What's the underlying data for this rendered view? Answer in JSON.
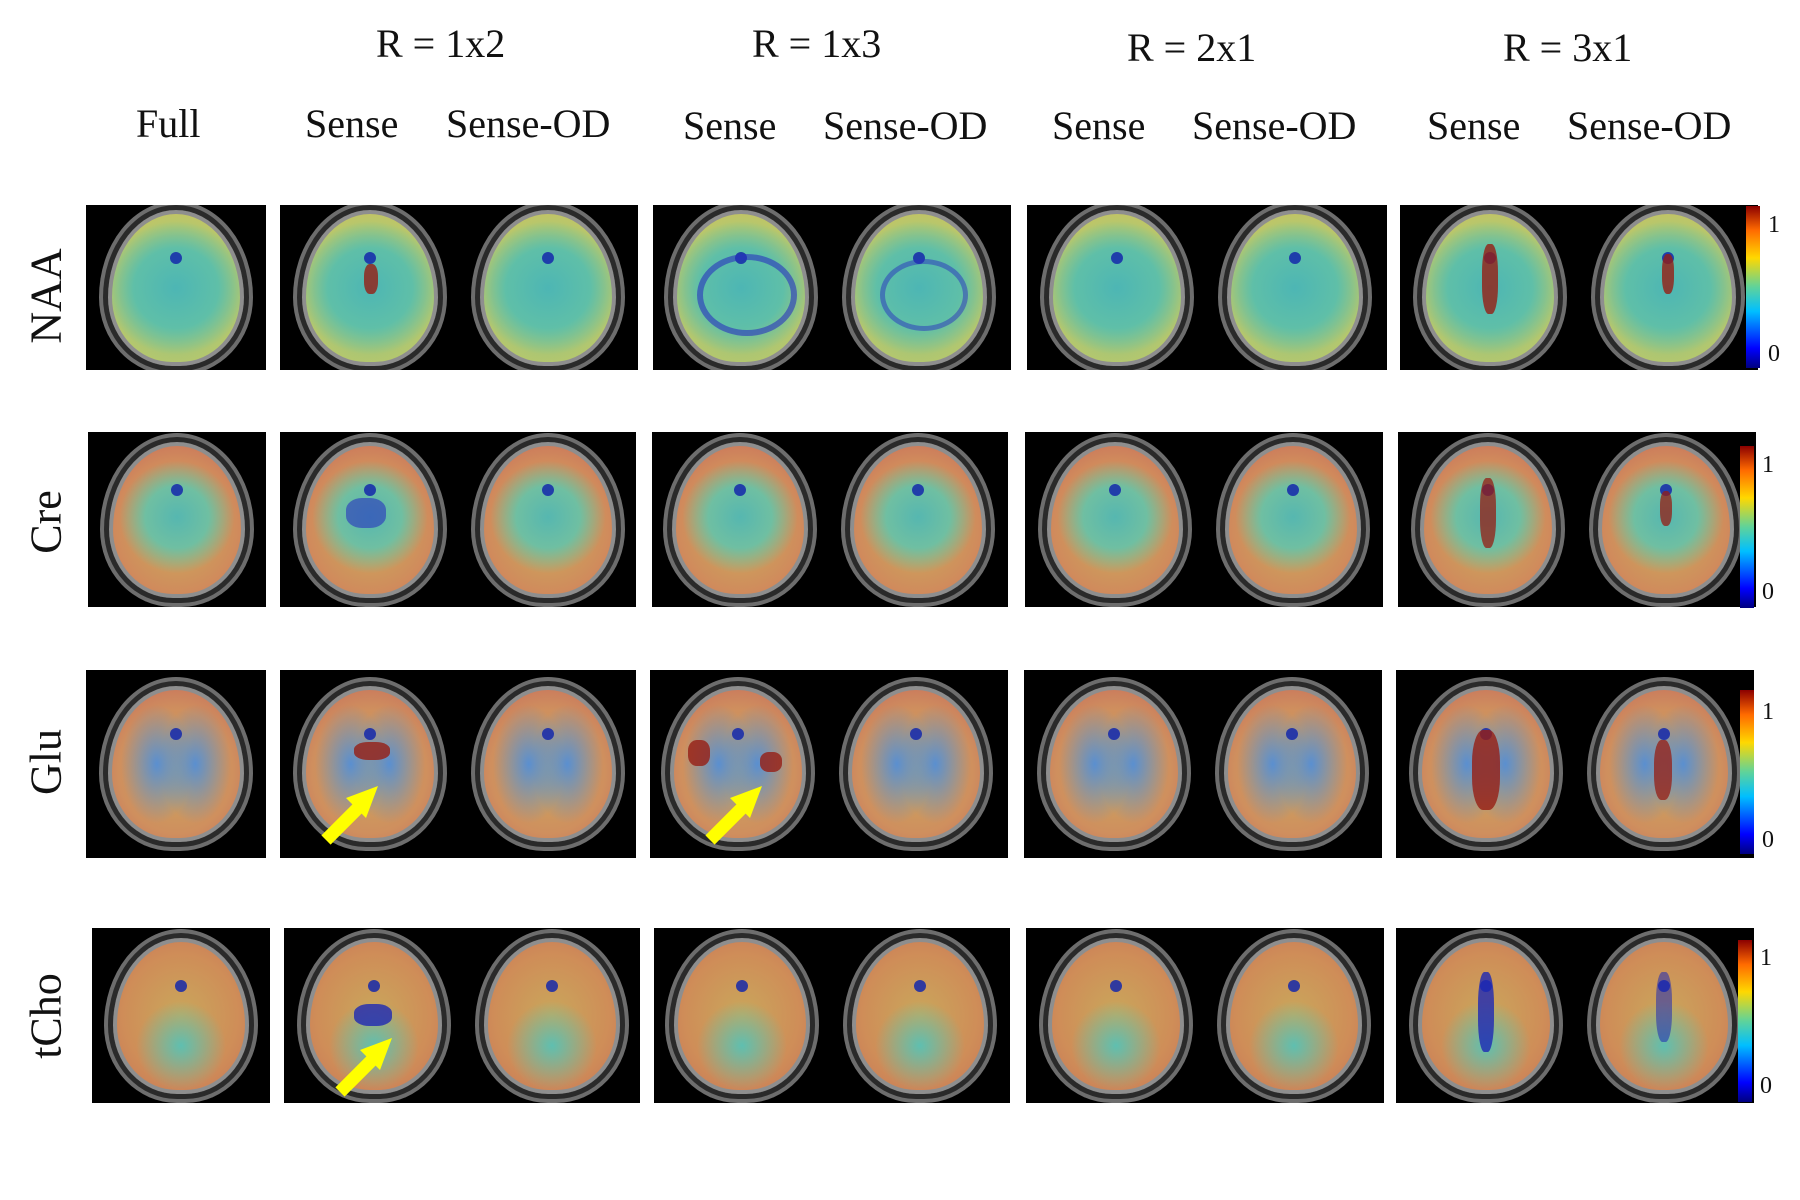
{
  "group_headers": [
    "R = 1x2",
    "R = 1x3",
    "R = 2x1",
    "R = 3x1"
  ],
  "column_headers": [
    "Full",
    "Sense",
    "Sense-OD",
    "Sense",
    "Sense-OD",
    "Sense",
    "Sense-OD",
    "Sense",
    "Sense-OD"
  ],
  "metabolites": [
    "NAA",
    "Cre",
    "Glu",
    "tCho"
  ],
  "colorbar": {
    "max_label": "1",
    "min_label": "0",
    "colors": [
      "#00007f",
      "#0000ff",
      "#00bfff",
      "#5fd39a",
      "#ffd800",
      "#ff6a00",
      "#8b0000"
    ]
  },
  "annotations": {
    "arrow_color": "#ffff00"
  }
}
